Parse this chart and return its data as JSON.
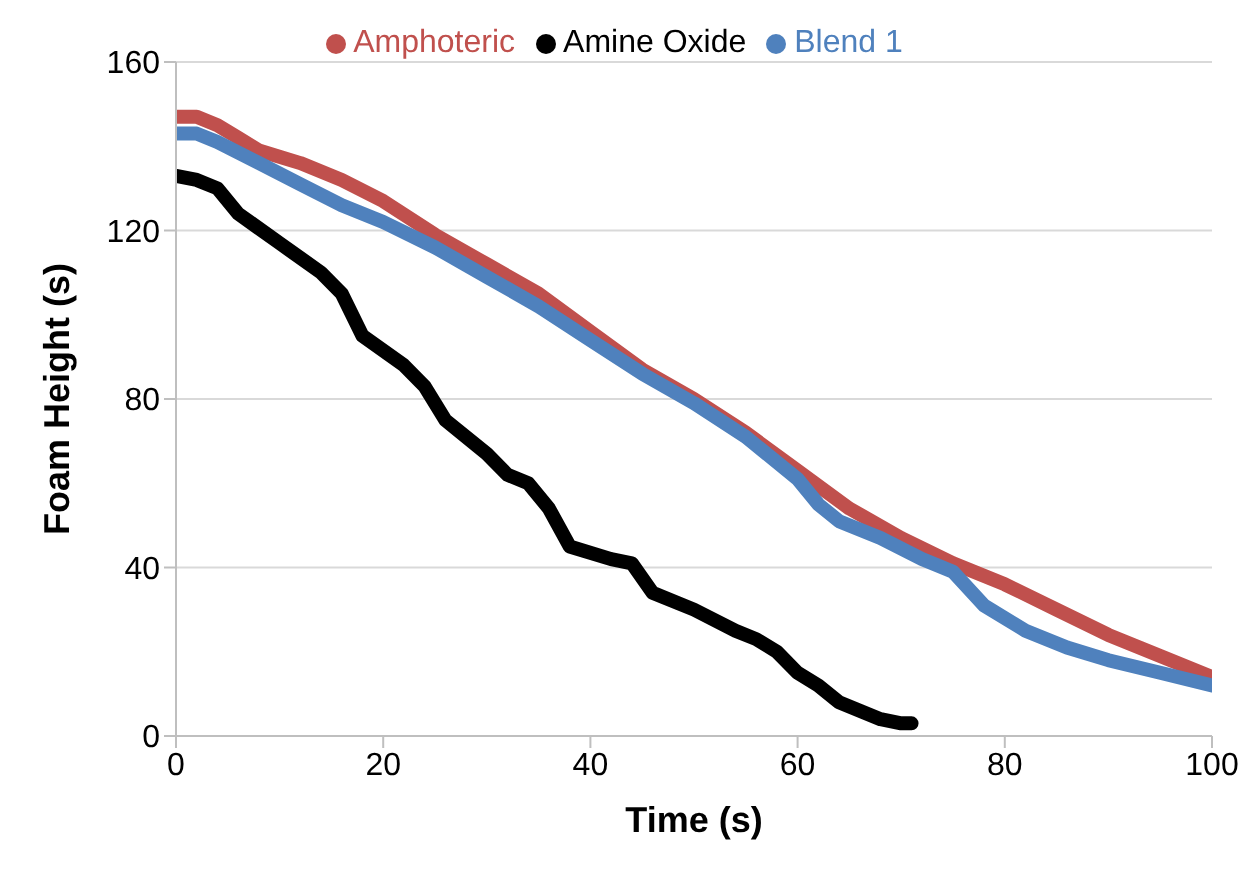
{
  "chart_data": {
    "type": "line",
    "xlabel": "Time (s)",
    "ylabel": "Foam Height (s)",
    "xlim": [
      0,
      100
    ],
    "xticks": [
      0,
      20,
      40,
      60,
      80,
      100
    ],
    "ylim": [
      0,
      160
    ],
    "yticks": [
      0,
      40,
      80,
      120,
      160
    ],
    "grid": "y",
    "legend": "top",
    "marker": "none",
    "line_style": "solid",
    "series": [
      {
        "name": "Amphoteric",
        "color": "#c0504d",
        "x": [
          0,
          2,
          4,
          6,
          8,
          12,
          16,
          20,
          25,
          30,
          35,
          40,
          45,
          50,
          55,
          60,
          65,
          70,
          75,
          80,
          85,
          90,
          95,
          100
        ],
        "values": [
          147,
          147,
          145,
          142,
          139,
          136,
          132,
          127,
          119,
          112,
          105,
          96,
          87,
          80,
          72,
          63,
          54,
          47,
          41,
          36,
          30,
          24,
          19,
          14
        ]
      },
      {
        "name": "Amine Oxide",
        "color": "#000000",
        "x": [
          0,
          2,
          4,
          6,
          10,
          14,
          16,
          18,
          22,
          24,
          26,
          30,
          32,
          34,
          36,
          38,
          42,
          44,
          46,
          50,
          54,
          56,
          58,
          60,
          62,
          64,
          66,
          68,
          70,
          71
        ],
        "values": [
          133,
          132,
          130,
          124,
          117,
          110,
          105,
          95,
          88,
          83,
          75,
          67,
          62,
          60,
          54,
          45,
          42,
          41,
          34,
          30,
          25,
          23,
          20,
          15,
          12,
          8,
          6,
          4,
          3,
          3
        ]
      },
      {
        "name": "Blend 1",
        "color": "#4f81bd",
        "x": [
          0,
          2,
          4,
          8,
          12,
          16,
          20,
          25,
          30,
          35,
          40,
          45,
          50,
          55,
          60,
          62,
          64,
          68,
          72,
          75,
          78,
          82,
          86,
          90,
          95,
          100
        ],
        "values": [
          143,
          143,
          141,
          136,
          131,
          126,
          122,
          116,
          109,
          102,
          94,
          86,
          79,
          71,
          61,
          55,
          51,
          47,
          42,
          39,
          31,
          25,
          21,
          18,
          15,
          12
        ]
      }
    ]
  }
}
